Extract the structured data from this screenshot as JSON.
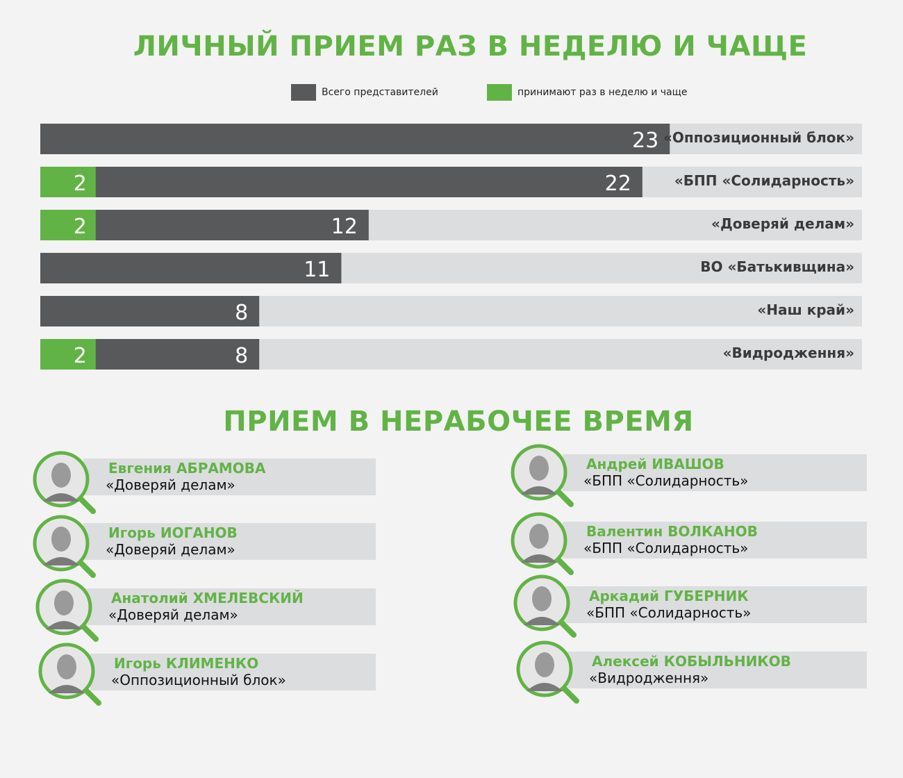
{
  "chart_data": {
    "type": "bar",
    "title": "ЛИЧНЫЙ ПРИЕМ РАЗ В НЕДЕЛЮ И ЧАЩЕ",
    "legend": [
      "Всего представителей",
      "принимают раз в неделю и чаще"
    ],
    "legend_placement": "top",
    "categories": [
      "«Оппозиционный блок»",
      "«БПП «Солидарность»",
      "«Доверяй делам»",
      "ВО «Батькивщина»",
      "«Наш край»",
      "«Видродження»"
    ],
    "series": [
      {
        "name": "Всего представителей",
        "values": [
          23,
          22,
          12,
          11,
          8,
          8
        ]
      },
      {
        "name": "принимают раз в неделю и чаще",
        "values": [
          0,
          2,
          2,
          0,
          0,
          2
        ]
      }
    ],
    "xlim": [
      0,
      30
    ],
    "colors": {
      "total": "#58595b",
      "weekly": "#62b346",
      "track": "#dcdddf"
    }
  },
  "section2": {
    "title": "ПРИЕМ В НЕРАБОЧЕЕ ВРЕМЯ",
    "left": [
      {
        "name": "Евгения АБРАМОВА",
        "party": "«Доверяй делам»"
      },
      {
        "name": "Игорь ИОГАНОВ",
        "party": "«Доверяй делам»"
      },
      {
        "name": "Анатолий ХМЕЛЕВСКИЙ",
        "party": "«Доверяй делам»"
      },
      {
        "name": "Игорь КЛИМЕНКО",
        "party": "«Оппозиционный блок»"
      }
    ],
    "right": [
      {
        "name": "Андрей ИВАШОВ",
        "party": "«БПП «Солидарность»"
      },
      {
        "name": "Валентин ВОЛКАНОВ",
        "party": "«БПП «Солидарность»"
      },
      {
        "name": "Аркадий ГУБЕРНИК",
        "party": "«БПП «Солидарность»"
      },
      {
        "name": "Алексей КОБЫЛЬНИКОВ",
        "party": "«Видродження»"
      }
    ]
  }
}
